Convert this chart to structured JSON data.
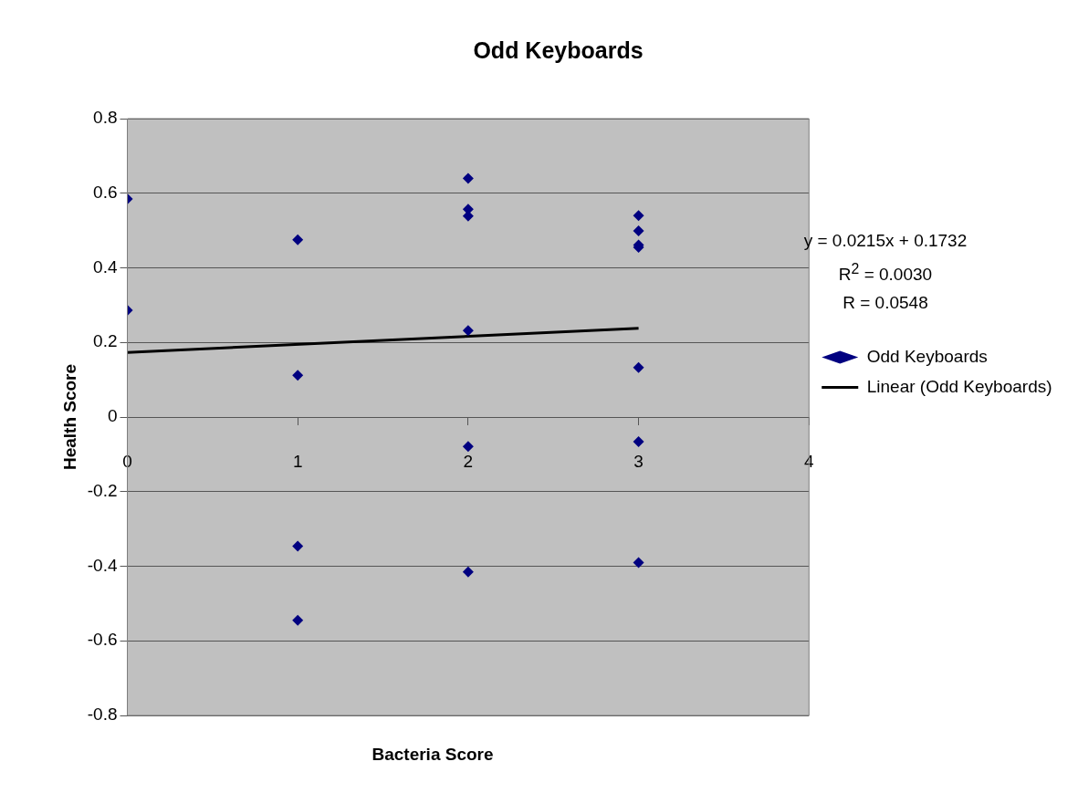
{
  "chart_data": {
    "type": "scatter",
    "title": "Odd Keyboards",
    "xlabel": "Bacteria Score",
    "ylabel": "Health Score",
    "annotations": [
      "y = 0.0215x + 0.1732",
      "R$^{2}$ = 0.0030",
      "R = 0.0548"
    ],
    "xlim": [
      0,
      4
    ],
    "xticks": [
      0,
      1,
      2,
      3,
      4
    ],
    "ylim": [
      -0.8,
      0.8
    ],
    "yticks": [
      -0.8,
      -0.6,
      -0.4,
      -0.2,
      0,
      0.2,
      0.4,
      0.6,
      0.8
    ],
    "grid": "y",
    "legend": "right",
    "marker": "diamond",
    "series": [
      {
        "name": "Odd Keyboards",
        "color": "#000080",
        "x": [
          0,
          0,
          1,
          1,
          1,
          1,
          2,
          2,
          2,
          2,
          2,
          2,
          3,
          3,
          3,
          3,
          3,
          3,
          3
        ],
        "values": [
          0.585,
          0.286,
          0.475,
          0.112,
          -0.346,
          -0.545,
          0.64,
          0.557,
          0.539,
          0.232,
          -0.079,
          -0.415,
          0.54,
          0.499,
          0.461,
          0.455,
          0.133,
          -0.066,
          -0.39
        ]
      },
      {
        "name": "Linear (Odd Keyboards)",
        "type": "line",
        "color": "#000000",
        "marker": "none",
        "line_style": "solid",
        "x": [
          0,
          3
        ],
        "values": [
          0.173,
          0.238
        ]
      }
    ]
  }
}
